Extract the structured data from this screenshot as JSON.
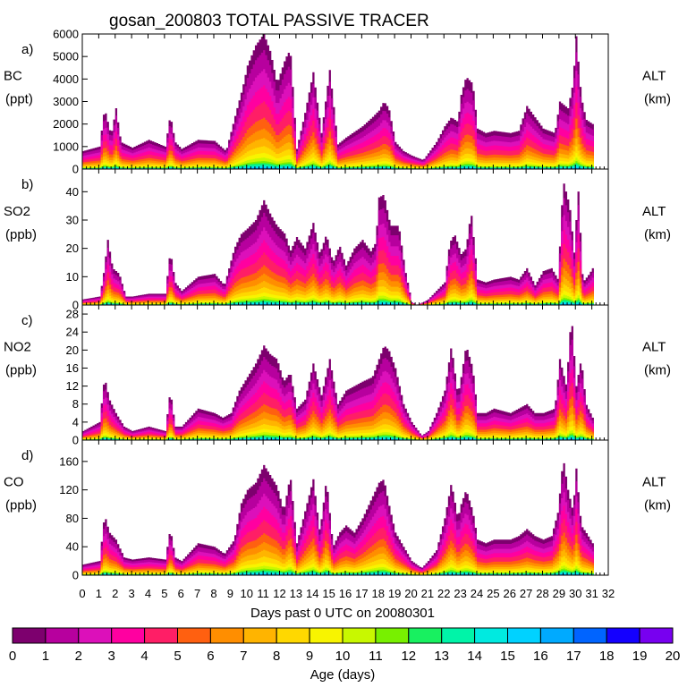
{
  "chart_data": {
    "type": "area",
    "title": "gosan_200803 TOTAL PASSIVE TRACER",
    "xlabel": "Days past 0 UTC on 20080301",
    "x_ticks": [
      "0",
      "1",
      "2",
      "3",
      "4",
      "5",
      "6",
      "7",
      "8",
      "9",
      "10",
      "11",
      "12",
      "13",
      "14",
      "15",
      "16",
      "17",
      "18",
      "19",
      "20",
      "21",
      "22",
      "23",
      "24",
      "25",
      "26",
      "27",
      "28",
      "29",
      "30",
      "31",
      "32"
    ],
    "xlim": [
      0,
      32
    ],
    "right_axis": {
      "label": "ALT",
      "unit": "(km)"
    },
    "colorbar": {
      "label": "Age (days)",
      "ticks": [
        "0",
        "1",
        "2",
        "3",
        "4",
        "5",
        "6",
        "7",
        "8",
        "9",
        "10",
        "11",
        "12",
        "13",
        "14",
        "15",
        "16",
        "17",
        "18",
        "19",
        "20"
      ],
      "colors": [
        "#7d006e",
        "#b7009e",
        "#dc10ba",
        "#ff00a0",
        "#ff1e66",
        "#ff6010",
        "#ff8e00",
        "#ffb400",
        "#ffd800",
        "#f8f400",
        "#c8f800",
        "#78f000",
        "#18f060",
        "#00f4a8",
        "#00eae0",
        "#00d2ff",
        "#00aaff",
        "#0064ff",
        "#1400ff",
        "#7800f0"
      ]
    },
    "panels": [
      {
        "letter": "a)",
        "name": "BC",
        "unit": "(ppt)",
        "ylim": [
          0,
          6000
        ],
        "yticks": [
          "0",
          "1000",
          "2000",
          "3000",
          "4000",
          "5000",
          "6000"
        ],
        "x": [
          0,
          1,
          1.3,
          1.7,
          2.0,
          2.3,
          3,
          4,
          5,
          5.3,
          5.6,
          6,
          7,
          8,
          8.7,
          9.3,
          9.7,
          10.0,
          10.5,
          11.0,
          11.4,
          11.8,
          12.3,
          12.6,
          13.0,
          13.5,
          14.0,
          14.5,
          15.0,
          15.5,
          16,
          17,
          17.6,
          18.0,
          18.3,
          18.6,
          19.0,
          19.5,
          20,
          20.7,
          21.0,
          21.5,
          22.0,
          22.4,
          22.8,
          23.0,
          23.3,
          23.7,
          24.0,
          24.5,
          25,
          26,
          26.5,
          27.0,
          27.5,
          28,
          28.7,
          29.0,
          29.5,
          29.8,
          30.0,
          30.3,
          30.6,
          31.0
        ],
        "y": [
          800,
          1000,
          2700,
          1500,
          2700,
          1200,
          950,
          1300,
          1000,
          2400,
          1200,
          900,
          1300,
          1250,
          800,
          2500,
          3600,
          4600,
          5500,
          6000,
          5200,
          3800,
          4900,
          5300,
          900,
          2500,
          4300,
          1600,
          4400,
          1100,
          1400,
          1900,
          2300,
          2600,
          3000,
          2700,
          1200,
          800,
          600,
          400,
          700,
          1200,
          1900,
          2300,
          2100,
          3300,
          4100,
          3800,
          1800,
          1600,
          1700,
          1600,
          1700,
          2800,
          2300,
          1800,
          1600,
          3000,
          2700,
          3800,
          5900,
          3200,
          2200,
          2000
        ]
      },
      {
        "letter": "b)",
        "name": "SO2",
        "unit": "(ppb)",
        "ylim": [
          0,
          48
        ],
        "yticks": [
          "0",
          "10",
          "20",
          "30",
          "40"
        ],
        "x": [
          0,
          1,
          1.2,
          1.5,
          1.8,
          2.2,
          2.6,
          3,
          4,
          5,
          5.3,
          5.6,
          6,
          7,
          8,
          8.6,
          9.2,
          9.6,
          10.0,
          10.5,
          11.0,
          11.4,
          11.8,
          12.3,
          12.6,
          13.0,
          13.5,
          14.0,
          14.4,
          14.8,
          15.2,
          15.6,
          16.0,
          16.5,
          17,
          17.5,
          17.8,
          18.0,
          18.3,
          18.7,
          19.2,
          19.6,
          20.0,
          20.3,
          20.7,
          21.0,
          21.5,
          22.0,
          22.3,
          22.6,
          23.0,
          23.3,
          23.6,
          24.0,
          24.5,
          25,
          26,
          26.5,
          27.0,
          27.5,
          28,
          28.5,
          28.9,
          29.2,
          29.6,
          29.9,
          30.1,
          30.4,
          30.8,
          31.0
        ],
        "y": [
          2,
          3,
          9,
          23,
          13,
          11,
          3,
          3,
          4,
          4,
          19,
          8,
          5,
          10,
          11,
          7,
          20,
          25,
          27,
          30,
          37,
          32,
          28,
          25,
          19,
          24,
          20,
          29,
          18,
          25,
          15,
          21,
          14,
          20,
          23,
          19,
          22,
          38,
          39,
          28,
          28,
          12,
          1,
          0,
          1,
          2,
          5,
          8,
          22,
          25,
          18,
          20,
          33,
          9,
          8,
          9,
          10,
          9,
          13,
          7,
          12,
          13,
          9,
          44,
          35,
          17,
          43,
          8,
          11,
          13
        ]
      },
      {
        "letter": "c)",
        "name": "NO2",
        "unit": "(ppb)",
        "ylim": [
          0,
          30
        ],
        "yticks": [
          "0",
          "4",
          "8",
          "12",
          "16",
          "20",
          "24",
          "28"
        ],
        "x": [
          0,
          1,
          1.3,
          1.6,
          2.0,
          2.5,
          3,
          4,
          5,
          5.3,
          5.6,
          6,
          7,
          8,
          8.5,
          9,
          9.5,
          10.0,
          10.5,
          11.0,
          11.4,
          11.8,
          12.2,
          12.6,
          13.0,
          13.5,
          14.0,
          14.5,
          15.0,
          15.5,
          16,
          17,
          17.6,
          18.0,
          18.3,
          18.6,
          19.0,
          19.5,
          20,
          20.6,
          21.0,
          21.5,
          22.0,
          22.4,
          22.8,
          23.0,
          23.3,
          23.7,
          24.0,
          24.5,
          25,
          26,
          26.5,
          27,
          27.5,
          28,
          28.7,
          29.0,
          29.4,
          29.7,
          30.0,
          30.3,
          30.6,
          31.0
        ],
        "y": [
          2,
          4,
          14,
          9,
          6,
          3,
          2,
          3,
          2,
          11,
          3,
          3,
          7,
          6,
          5,
          6,
          11,
          14,
          17,
          21,
          19,
          18,
          13,
          15,
          7,
          9,
          17,
          10,
          18,
          8,
          11,
          13,
          14,
          18,
          21,
          20,
          16,
          8,
          4,
          1,
          2,
          6,
          11,
          21,
          10,
          14,
          21,
          16,
          6,
          6,
          7,
          6,
          7,
          8,
          6,
          6,
          7,
          18,
          12,
          28,
          12,
          18,
          8,
          5
        ]
      },
      {
        "letter": "d)",
        "name": "CO",
        "unit": "(ppb)",
        "ylim": [
          0,
          190
        ],
        "yticks": [
          "0",
          "40",
          "80",
          "120",
          "160"
        ],
        "x": [
          0,
          1,
          1.3,
          1.6,
          2.0,
          2.5,
          3,
          4,
          5,
          5.3,
          5.6,
          6,
          7,
          8,
          8.6,
          9.2,
          9.6,
          10.0,
          10.5,
          11.0,
          11.4,
          11.8,
          12.2,
          12.6,
          13.0,
          13.5,
          14.0,
          14.4,
          14.8,
          15.2,
          15.6,
          16.0,
          16.5,
          17,
          17.6,
          18.0,
          18.3,
          18.6,
          19.0,
          19.5,
          20,
          20.6,
          21.0,
          21.5,
          22.0,
          22.4,
          22.8,
          23.0,
          23.3,
          23.7,
          24.0,
          24.5,
          25,
          26,
          26.5,
          27,
          27.5,
          28,
          28.5,
          28.9,
          29.2,
          29.5,
          29.8,
          30.0,
          30.3,
          30.6,
          31.0
        ],
        "y": [
          15,
          20,
          85,
          60,
          50,
          25,
          22,
          25,
          22,
          65,
          25,
          20,
          45,
          40,
          30,
          50,
          100,
          120,
          130,
          155,
          140,
          125,
          90,
          140,
          45,
          90,
          135,
          60,
          135,
          40,
          60,
          70,
          60,
          80,
          110,
          130,
          135,
          100,
          60,
          40,
          20,
          10,
          20,
          35,
          80,
          130,
          80,
          100,
          120,
          90,
          50,
          45,
          50,
          50,
          55,
          65,
          55,
          50,
          55,
          90,
          165,
          120,
          90,
          150,
          70,
          60,
          45
        ]
      }
    ]
  }
}
